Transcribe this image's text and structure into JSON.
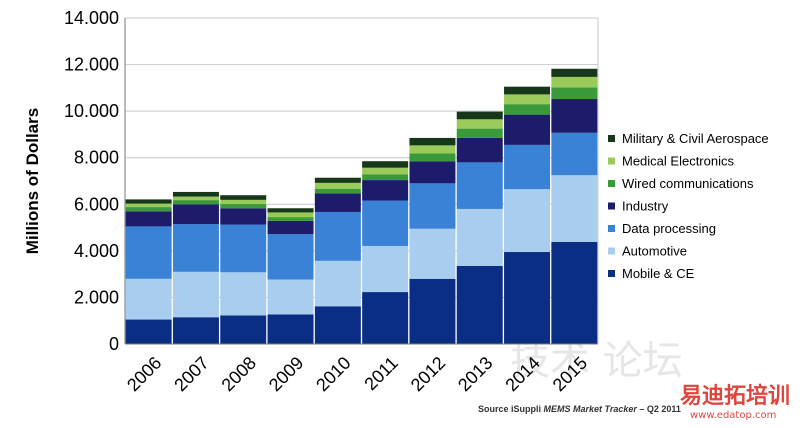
{
  "chart_data": {
    "type": "bar",
    "stacked": true,
    "title": "",
    "xlabel": "",
    "ylabel": "Millions of Dollars",
    "ylim": [
      0,
      14000
    ],
    "yticks": [
      0,
      2000,
      4000,
      6000,
      8000,
      10000,
      12000,
      14000
    ],
    "ytick_labels": [
      "0",
      "2.000",
      "4.000",
      "6.000",
      "8.000",
      "10.000",
      "12.000",
      "14.000"
    ],
    "grid": true,
    "legend_position": "right",
    "categories": [
      "2006",
      "2007",
      "2008",
      "2009",
      "2010",
      "2011",
      "2012",
      "2013",
      "2014",
      "2015"
    ],
    "series": [
      {
        "name": "Mobile & CE",
        "color": "#0b2e85",
        "values": [
          1050,
          1150,
          1230,
          1270,
          1620,
          2230,
          2800,
          3350,
          3950,
          4380
        ]
      },
      {
        "name": "Automotive",
        "color": "#a9cdee",
        "values": [
          1750,
          1950,
          1850,
          1500,
          1950,
          1980,
          2150,
          2450,
          2700,
          2870
        ]
      },
      {
        "name": "Data processing",
        "color": "#3a82d6",
        "values": [
          2250,
          2050,
          2050,
          1950,
          2100,
          1950,
          1950,
          2000,
          1900,
          1820
        ]
      },
      {
        "name": "Industry",
        "color": "#1c1c6a",
        "values": [
          650,
          850,
          700,
          570,
          800,
          880,
          950,
          1050,
          1300,
          1450
        ]
      },
      {
        "name": "Wired communications",
        "color": "#3a9a3a",
        "values": [
          180,
          180,
          180,
          160,
          200,
          250,
          330,
          400,
          450,
          500
        ]
      },
      {
        "name": "Medical Electronics",
        "color": "#9acb5a",
        "values": [
          150,
          150,
          180,
          200,
          250,
          280,
          350,
          400,
          420,
          450
        ]
      },
      {
        "name": "Military & Civil Aerospace",
        "color": "#17371a",
        "values": [
          180,
          200,
          200,
          180,
          220,
          280,
          320,
          330,
          330,
          350
        ]
      }
    ],
    "legend_order": [
      "Military & Civil Aerospace",
      "Medical Electronics",
      "Wired communications",
      "Industry",
      "Data processing",
      "Automotive",
      "Mobile & CE"
    ]
  },
  "source": {
    "prefix": "Source iSuppli ",
    "italic": "MEMS Market Tracker",
    "suffix": " – Q2 2011"
  },
  "watermark": {
    "mark": "易迪拓培训",
    "url": "www.edatop.com",
    "faded": "技术 论坛"
  }
}
